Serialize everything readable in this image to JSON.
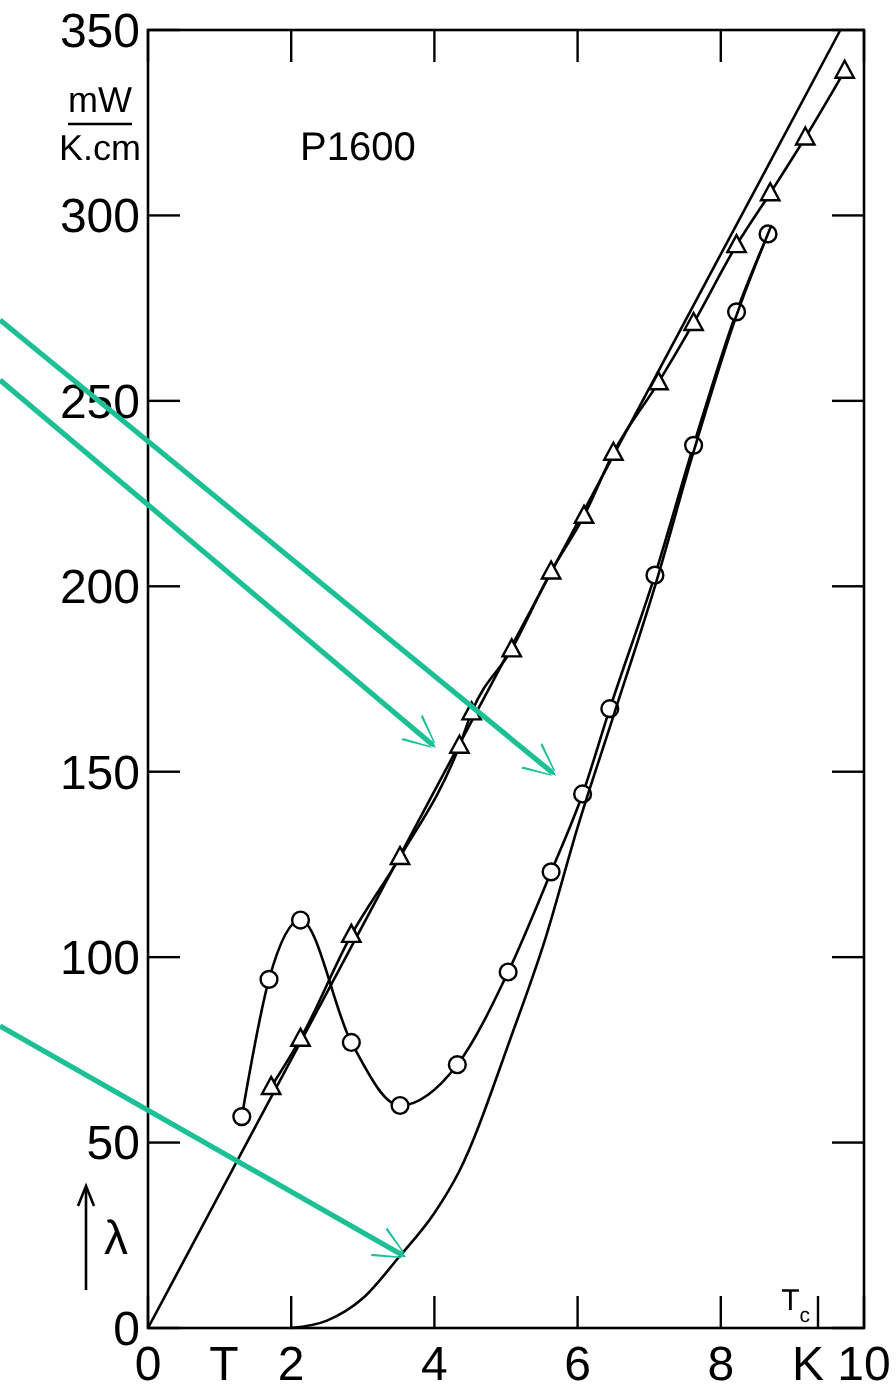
{
  "chart_data": {
    "type": "line",
    "xlabel": "T",
    "ylabel": "λ",
    "annotations": [
      "P1600",
      "mW",
      "K.cm",
      "K",
      "T$_{c}$"
    ],
    "xlim": [
      0,
      10
    ],
    "xticks": [
      0,
      2,
      4,
      6,
      8,
      10
    ],
    "ylim": [
      0,
      350
    ],
    "yticks": [
      0,
      50,
      100,
      150,
      200,
      250,
      300,
      350
    ],
    "grid": false,
    "line_style": "solid",
    "series": [
      {
        "color": "#000000",
        "marker": "none",
        "x": [
          0,
          9.67
        ],
        "values": [
          0,
          350
        ]
      },
      {
        "color": "#000000",
        "marker": "triangle",
        "x": [
          1.72,
          2.13,
          2.84,
          3.52,
          4.35,
          4.52,
          5.08,
          5.63,
          6.09,
          6.5,
          7.13,
          7.62,
          8.22,
          8.69,
          9.18,
          9.73
        ],
        "values": [
          65,
          78,
          106,
          127,
          157,
          166,
          183,
          204,
          219,
          236,
          255,
          271,
          292,
          306,
          321,
          339
        ]
      },
      {
        "color": "#000000",
        "marker": "circle",
        "x": [
          1.31,
          1.69,
          2.13,
          2.84,
          3.52,
          4.32,
          5.03,
          5.63,
          6.07,
          6.45,
          7.08,
          7.62,
          8.22,
          8.66
        ],
        "values": [
          57,
          94,
          110,
          77,
          60,
          71,
          96,
          123,
          144,
          167,
          203,
          238,
          274,
          295
        ]
      },
      {
        "color": "#000000",
        "marker": "none",
        "x": [
          2,
          2.5,
          3,
          3.5,
          4,
          4.34,
          5.08,
          5.55,
          6,
          6.5,
          7.08,
          7.6,
          8.2,
          8.7
        ],
        "values": [
          0,
          2,
          8,
          19,
          31,
          42,
          79,
          105,
          135,
          165,
          200,
          235,
          272,
          297
        ]
      }
    ]
  }
}
